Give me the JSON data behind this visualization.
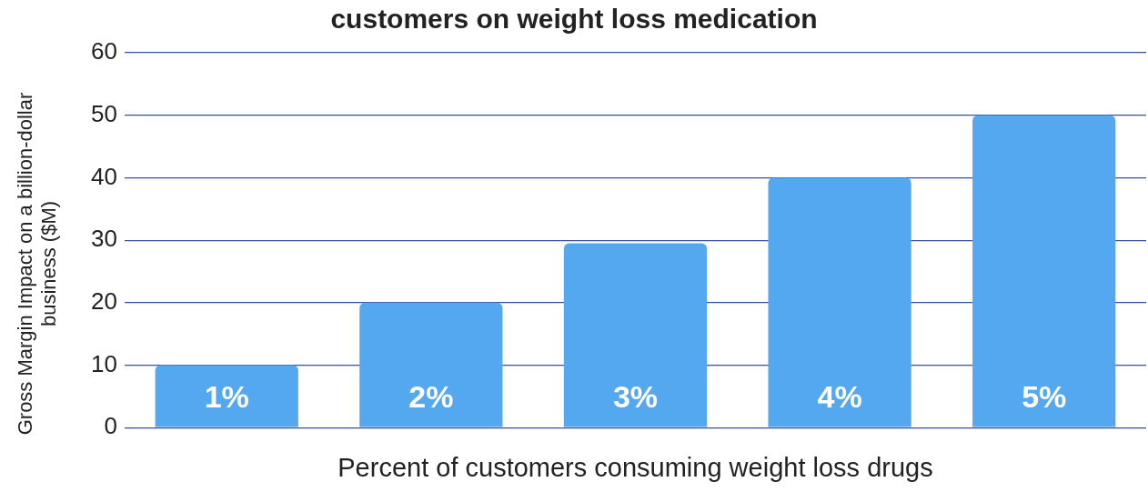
{
  "chart_data": {
    "type": "bar",
    "title": "customers on weight loss medication",
    "xlabel": "Percent of customers consuming weight loss drugs",
    "ylabel": "Gross Margin Impact on a billion-dollar business ($M)",
    "categories": [
      "1%",
      "2%",
      "3%",
      "4%",
      "5%"
    ],
    "values": [
      10,
      20,
      29.5,
      40,
      50
    ],
    "color": "#53a8f0",
    "ylim": [
      0,
      60
    ],
    "yticks": [
      0,
      10,
      20,
      30,
      40,
      50,
      60
    ],
    "grid": "y",
    "legend": false
  }
}
